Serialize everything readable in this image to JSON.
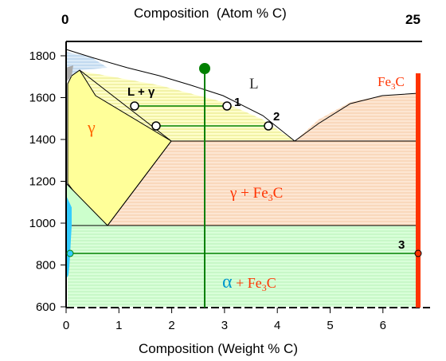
{
  "axes": {
    "bottom_title": "Composition (Weight % C)",
    "top_title": "Composition  (Atom % C)",
    "top_ticks": [
      "0",
      "25"
    ],
    "bottom_ticks": [
      "0",
      "1",
      "2",
      "3",
      "4",
      "5",
      "6"
    ],
    "y_ticks": [
      "600",
      "800",
      "1000",
      "1200",
      "1400",
      "1600",
      "1800"
    ]
  },
  "regions": {
    "liquid": "L",
    "gamma": "γ",
    "liquid_gamma": "L + γ",
    "gamma_fe3c_prefix": "γ + ",
    "alpha_fe3c_alpha": "α",
    "alpha_fe3c_plus": " + ",
    "fe3c_main": "Fe",
    "fe3c_sub": "3",
    "fe3c_tail": "C"
  },
  "fe3c_label": {
    "main": "Fe",
    "sub": "3",
    "tail": "C"
  },
  "points": {
    "p1": "1",
    "p2": "2",
    "p3": "3"
  },
  "colors": {
    "gamma_fill": "#ffff99",
    "gamma_text": "#ff6600",
    "gamma_fe3c_fill": "#fbe1cb",
    "alpha_fe3c_fill": "#ccffcc",
    "fe3c_line": "#ff3300",
    "composition_line": "#008000",
    "alpha_text": "#0099cc",
    "alpha_phase": "#33ccff",
    "delta_region": "#b8d8f0"
  }
}
